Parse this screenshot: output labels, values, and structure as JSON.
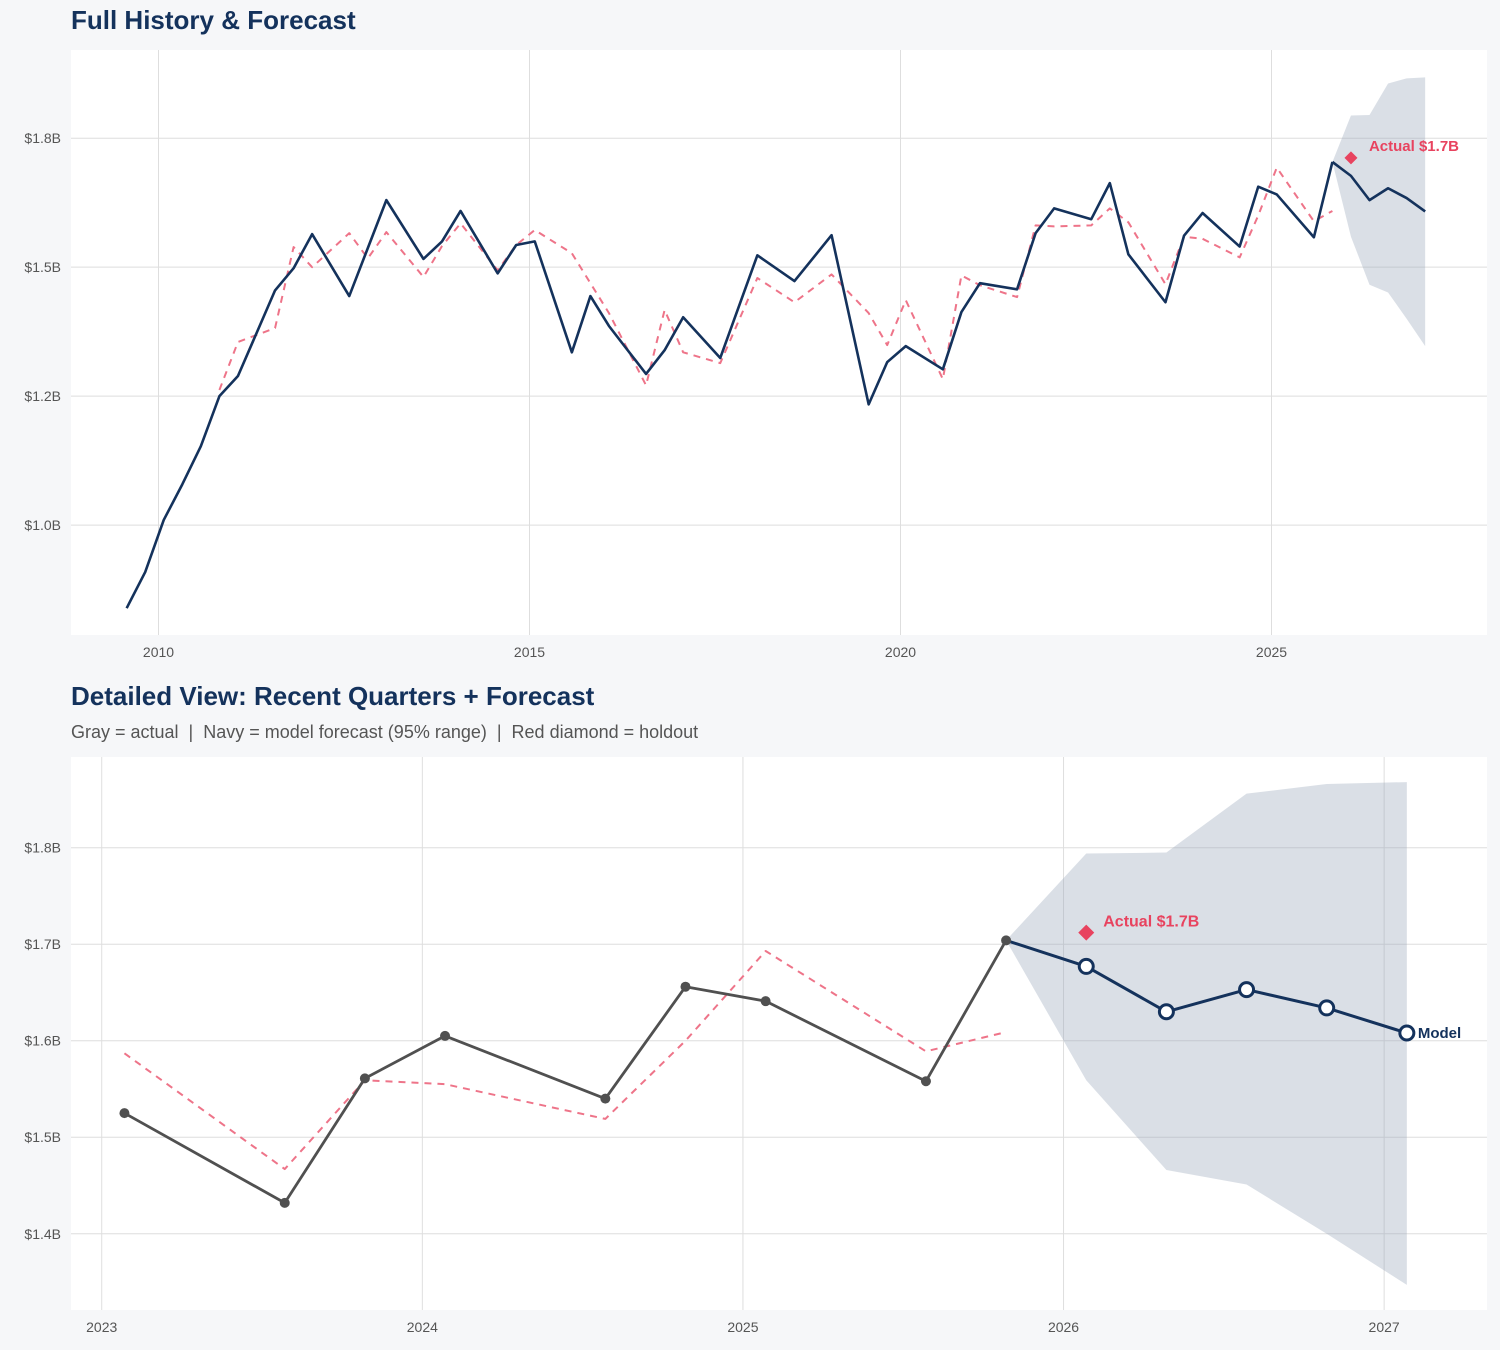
{
  "colors": {
    "background": "#f6f7f9",
    "plot_bg": "#ffffff",
    "grid": "#dedede",
    "navy": "#14325c",
    "gray": "#505050",
    "fitted": "#ee7489",
    "holdout": "#e8435f",
    "band": "rgba(150,162,182,0.35)"
  },
  "chart_data": [
    {
      "type": "line",
      "title": "Full History & Forecast",
      "xlabel": "",
      "ylabel": "",
      "xlim": [
        "2008-10",
        "2027-11"
      ],
      "ylim": [
        0.787,
        1.921
      ],
      "grid": true,
      "x_ticks": [
        {
          "value": 2010,
          "label": "2010"
        },
        {
          "value": 2015,
          "label": "2015"
        },
        {
          "value": 2020,
          "label": "2020"
        },
        {
          "value": 2025,
          "label": "2025"
        }
      ],
      "y_ticks": [
        {
          "value": 1.0,
          "label": "$1.0B"
        },
        {
          "value": 1.25,
          "label": "$1.2B"
        },
        {
          "value": 1.5,
          "label": "$1.5B"
        },
        {
          "value": 1.75,
          "label": "$1.8B"
        }
      ],
      "actual": {
        "color": "#14325c",
        "markers": false,
        "x": [
          "2009-07",
          "2009-10",
          "2010-01",
          "2010-04",
          "2010-07",
          "2010-10",
          "2011-01",
          "2011-07",
          "2011-10",
          "2012-01",
          "2012-07",
          "2012-10",
          "2013-01",
          "2013-07",
          "2013-10",
          "2014-01",
          "2014-07",
          "2014-10",
          "2015-01",
          "2015-07",
          "2015-10",
          "2016-01",
          "2016-07",
          "2016-10",
          "2017-01",
          "2017-07",
          "2018-01",
          "2018-07",
          "2019-01",
          "2019-07",
          "2019-10",
          "2020-01",
          "2020-07",
          "2020-10",
          "2021-01",
          "2021-07",
          "2021-10",
          "2022-01",
          "2022-07",
          "2022-10",
          "2023-01",
          "2023-07",
          "2023-10",
          "2024-01",
          "2024-07",
          "2024-10",
          "2025-01",
          "2025-07",
          "2025-10"
        ],
        "y": [
          0.839,
          0.909,
          1.01,
          1.079,
          1.153,
          1.25,
          1.289,
          1.455,
          1.498,
          1.564,
          1.444,
          1.537,
          1.63,
          1.516,
          1.55,
          1.609,
          1.488,
          1.543,
          1.55,
          1.335,
          1.444,
          1.386,
          1.293,
          1.339,
          1.403,
          1.324,
          1.523,
          1.473,
          1.562,
          1.234,
          1.316,
          1.347,
          1.302,
          1.413,
          1.469,
          1.457,
          1.566,
          1.614,
          1.593,
          1.663,
          1.525,
          1.432,
          1.561,
          1.605,
          1.54,
          1.656,
          1.641,
          1.558,
          1.704
        ]
      },
      "fitted": {
        "color": "#ee7489",
        "dashed": true,
        "x": [
          "2010-10",
          "2011-01",
          "2011-07",
          "2011-10",
          "2012-01",
          "2012-07",
          "2012-10",
          "2013-01",
          "2013-07",
          "2013-10",
          "2014-01",
          "2014-07",
          "2014-10",
          "2015-01",
          "2015-07",
          "2015-10",
          "2016-01",
          "2016-07",
          "2016-10",
          "2017-01",
          "2017-07",
          "2018-01",
          "2018-07",
          "2019-01",
          "2019-07",
          "2019-10",
          "2020-01",
          "2020-07",
          "2020-10",
          "2021-01",
          "2021-07",
          "2021-10",
          "2022-01",
          "2022-07",
          "2022-10",
          "2023-01",
          "2023-07",
          "2023-10",
          "2024-01",
          "2024-07",
          "2024-10",
          "2025-01",
          "2025-07",
          "2025-10"
        ],
        "y": [
          1.262,
          1.355,
          1.382,
          1.539,
          1.5,
          1.566,
          1.517,
          1.568,
          1.481,
          1.541,
          1.585,
          1.494,
          1.543,
          1.572,
          1.527,
          1.469,
          1.411,
          1.271,
          1.417,
          1.335,
          1.314,
          1.479,
          1.432,
          1.486,
          1.411,
          1.349,
          1.436,
          1.283,
          1.484,
          1.465,
          1.442,
          1.581,
          1.579,
          1.581,
          1.614,
          1.587,
          1.467,
          1.559,
          1.555,
          1.519,
          1.6,
          1.693,
          1.589,
          1.609
        ]
      },
      "forecast": {
        "color": "#14325c",
        "markers": false,
        "x": [
          "2025-10",
          "2026-01",
          "2026-04",
          "2026-07",
          "2026-10",
          "2027-01"
        ],
        "y": [
          1.704,
          1.677,
          1.63,
          1.653,
          1.634,
          1.608
        ],
        "upper": [
          1.704,
          1.794,
          1.795,
          1.856,
          1.866,
          1.868
        ],
        "lower": [
          1.704,
          1.559,
          1.466,
          1.451,
          1.4,
          1.347
        ]
      },
      "holdout": {
        "x": "2026-01",
        "y": 1.712,
        "label": "Actual $1.7B"
      }
    },
    {
      "type": "line",
      "title": "Detailed View: Recent Quarters + Forecast",
      "subtitle": "Gray = actual  |  Navy = model forecast (95% range)  |  Red diamond = holdout",
      "xlabel": "",
      "ylabel": "",
      "xlim": [
        "2022-11",
        "2027-04"
      ],
      "ylim": [
        1.321,
        1.894
      ],
      "grid": true,
      "x_ticks": [
        {
          "value": 2023,
          "label": "2023"
        },
        {
          "value": 2024,
          "label": "2024"
        },
        {
          "value": 2025,
          "label": "2025"
        },
        {
          "value": 2026,
          "label": "2026"
        },
        {
          "value": 2027,
          "label": "2027"
        }
      ],
      "y_ticks": [
        {
          "value": 1.4,
          "label": "$1.4B"
        },
        {
          "value": 1.5,
          "label": "$1.5B"
        },
        {
          "value": 1.6,
          "label": "$1.6B"
        },
        {
          "value": 1.7,
          "label": "$1.7B"
        },
        {
          "value": 1.8,
          "label": "$1.8B"
        }
      ],
      "actual": {
        "color": "#505050",
        "markers": true,
        "x": [
          "2023-01",
          "2023-07",
          "2023-10",
          "2024-01",
          "2024-07",
          "2024-10",
          "2025-01",
          "2025-07",
          "2025-10"
        ],
        "y": [
          1.525,
          1.432,
          1.561,
          1.605,
          1.54,
          1.656,
          1.641,
          1.558,
          1.704
        ]
      },
      "fitted": {
        "color": "#ee7489",
        "dashed": true,
        "x": [
          "2023-01",
          "2023-07",
          "2023-10",
          "2024-01",
          "2024-07",
          "2024-10",
          "2025-01",
          "2025-07",
          "2025-10"
        ],
        "y": [
          1.587,
          1.467,
          1.559,
          1.555,
          1.519,
          1.6,
          1.693,
          1.589,
          1.609
        ]
      },
      "forecast": {
        "color": "#14325c",
        "markers": true,
        "x": [
          "2025-10",
          "2026-01",
          "2026-04",
          "2026-07",
          "2026-10",
          "2027-01"
        ],
        "y": [
          1.704,
          1.677,
          1.63,
          1.653,
          1.634,
          1.608
        ],
        "upper": [
          1.704,
          1.794,
          1.795,
          1.856,
          1.866,
          1.868
        ],
        "lower": [
          1.704,
          1.559,
          1.466,
          1.451,
          1.4,
          1.347
        ],
        "end_label": "Model"
      },
      "holdout": {
        "x": "2026-01",
        "y": 1.712,
        "label": "Actual $1.7B"
      }
    }
  ]
}
